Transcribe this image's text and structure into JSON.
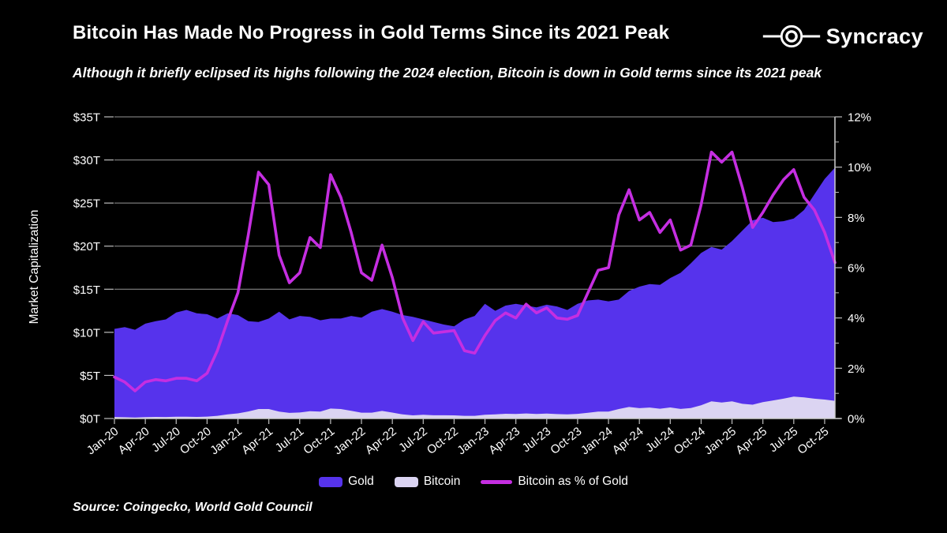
{
  "header": {
    "title": "Bitcoin Has Made No Progress in Gold Terms Since its 2021 Peak",
    "subtitle": "Although it briefly eclipsed its highs following the 2024 election, Bitcoin is down in Gold terms since its 2021 peak",
    "brand": "Syncracy"
  },
  "source": "Source: Coingecko, World Gold Council",
  "colors": {
    "background": "#000000",
    "text": "#ffffff",
    "gold": "#5633EC",
    "bitcoin": "#DBD4F2",
    "pct_line": "#C52EE1",
    "gridline": "#969696",
    "axis": "#cfcfcf",
    "tick": "#bfbfbf"
  },
  "chart_data": {
    "type": "area+line",
    "title": "Bitcoin Has Made No Progress in Gold Terms Since its 2021 Peak",
    "ylabel": "Market Capitalization",
    "grid": "horizontal",
    "legend_position": "bottom",
    "x": [
      "Jan-20",
      "Feb-20",
      "Mar-20",
      "Apr-20",
      "May-20",
      "Jun-20",
      "Jul-20",
      "Aug-20",
      "Sep-20",
      "Oct-20",
      "Nov-20",
      "Dec-20",
      "Jan-21",
      "Feb-21",
      "Mar-21",
      "Apr-21",
      "May-21",
      "Jun-21",
      "Jul-21",
      "Aug-21",
      "Sep-21",
      "Oct-21",
      "Nov-21",
      "Dec-21",
      "Jan-22",
      "Feb-22",
      "Mar-22",
      "Apr-22",
      "May-22",
      "Jun-22",
      "Jul-22",
      "Aug-22",
      "Sep-22",
      "Oct-22",
      "Nov-22",
      "Dec-22",
      "Jan-23",
      "Feb-23",
      "Mar-23",
      "Apr-23",
      "May-23",
      "Jun-23",
      "Jul-23",
      "Aug-23",
      "Sep-23",
      "Oct-23",
      "Nov-23",
      "Dec-23",
      "Jan-24",
      "Feb-24",
      "Mar-24",
      "Apr-24",
      "May-24",
      "Jun-24",
      "Jul-24",
      "Aug-24",
      "Sep-24",
      "Oct-24",
      "Nov-24",
      "Dec-24",
      "Jan-25",
      "Feb-25",
      "Mar-25",
      "Apr-25",
      "May-25",
      "Jun-25",
      "Jul-25",
      "Aug-25",
      "Sep-25",
      "Oct-25",
      "Nov-25"
    ],
    "x_tick_every": 3,
    "y_left": {
      "tick_labels": [
        "$0T",
        "$5T",
        "$10T",
        "$15T",
        "$20T",
        "$25T",
        "$30T",
        "$35T"
      ],
      "tick_values": [
        0,
        5,
        10,
        15,
        20,
        25,
        30,
        35
      ],
      "max": 35
    },
    "y_right": {
      "tick_labels": [
        "0%",
        "2%",
        "4%",
        "6%",
        "8%",
        "10%",
        "12%"
      ],
      "tick_values": [
        0,
        2,
        4,
        6,
        8,
        10,
        12
      ],
      "max": 12,
      "minor_step": 1
    },
    "series": [
      {
        "name": "Gold",
        "type": "area",
        "axis": "left",
        "color": "#5633EC",
        "values": [
          10.4,
          10.6,
          10.3,
          11.0,
          11.3,
          11.5,
          12.3,
          12.6,
          12.2,
          12.1,
          11.6,
          12.2,
          12.0,
          11.3,
          11.2,
          11.6,
          12.4,
          11.5,
          11.9,
          11.8,
          11.4,
          11.6,
          11.6,
          11.9,
          11.7,
          12.4,
          12.7,
          12.4,
          12.0,
          11.8,
          11.5,
          11.2,
          10.9,
          10.7,
          11.5,
          11.9,
          13.3,
          12.5,
          13.1,
          13.3,
          13.1,
          12.9,
          13.2,
          13.0,
          12.6,
          13.3,
          13.7,
          13.8,
          13.6,
          13.8,
          14.8,
          15.3,
          15.6,
          15.5,
          16.3,
          16.9,
          18.0,
          19.2,
          19.9,
          19.6,
          20.6,
          21.8,
          23.0,
          23.3,
          22.8,
          22.9,
          23.2,
          24.2,
          26.0,
          27.8,
          29.1
        ]
      },
      {
        "name": "Bitcoin",
        "type": "area",
        "axis": "left",
        "color": "#DBD4F2",
        "values": [
          0.17,
          0.15,
          0.11,
          0.16,
          0.18,
          0.17,
          0.2,
          0.2,
          0.18,
          0.22,
          0.31,
          0.48,
          0.6,
          0.82,
          1.1,
          1.1,
          0.8,
          0.65,
          0.7,
          0.85,
          0.8,
          1.15,
          1.1,
          0.9,
          0.68,
          0.68,
          0.88,
          0.69,
          0.48,
          0.37,
          0.44,
          0.38,
          0.38,
          0.37,
          0.31,
          0.31,
          0.44,
          0.48,
          0.55,
          0.53,
          0.59,
          0.53,
          0.57,
          0.51,
          0.48,
          0.54,
          0.67,
          0.8,
          0.8,
          1.1,
          1.34,
          1.2,
          1.27,
          1.14,
          1.28,
          1.11,
          1.21,
          1.54,
          2.0,
          1.85,
          2.0,
          1.7,
          1.6,
          1.9,
          2.1,
          2.3,
          2.55,
          2.45,
          2.3,
          2.2,
          2.05
        ]
      },
      {
        "name": "Bitcoin as % of Gold",
        "type": "line",
        "axis": "right",
        "color": "#C52EE1",
        "values": [
          1.65,
          1.45,
          1.1,
          1.45,
          1.55,
          1.5,
          1.6,
          1.6,
          1.5,
          1.8,
          2.7,
          3.9,
          5.0,
          7.3,
          9.8,
          9.3,
          6.5,
          5.4,
          5.8,
          7.2,
          6.8,
          9.7,
          8.8,
          7.4,
          5.8,
          5.5,
          6.9,
          5.6,
          4.0,
          3.1,
          3.85,
          3.4,
          3.45,
          3.5,
          2.7,
          2.6,
          3.3,
          3.9,
          4.2,
          4.0,
          4.55,
          4.2,
          4.4,
          4.0,
          3.95,
          4.1,
          5.0,
          5.9,
          6.0,
          8.1,
          9.1,
          7.9,
          8.2,
          7.4,
          7.9,
          6.7,
          6.9,
          8.5,
          10.6,
          10.2,
          10.6,
          9.2,
          7.6,
          8.2,
          8.9,
          9.5,
          9.9,
          8.8,
          8.3,
          7.4,
          6.2
        ]
      }
    ]
  }
}
